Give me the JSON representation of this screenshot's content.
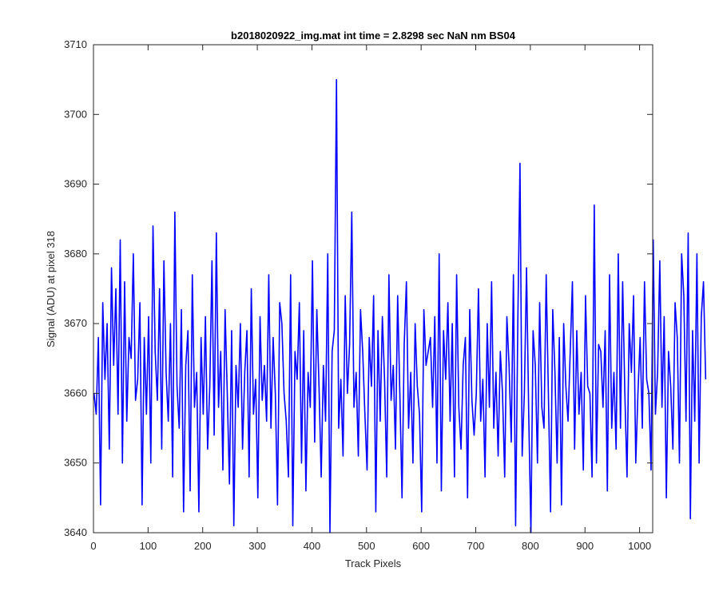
{
  "chart_data": {
    "type": "line",
    "title": "b2018020922_img.mat int time = 2.8298 sec  NaN nm BS04",
    "xlabel": "Track Pixels",
    "ylabel": "Signal (ADU) at pixel 318",
    "xlim": [
      0,
      1024
    ],
    "ylim": [
      3640,
      3710
    ],
    "xticks": [
      "0",
      "100",
      "200",
      "300",
      "400",
      "500",
      "600",
      "700",
      "800",
      "900",
      "1000"
    ],
    "yticks": [
      "3640",
      "3650",
      "3660",
      "3670",
      "3680",
      "3690",
      "3700",
      "3710"
    ],
    "grid": false,
    "line_color": "#0000ff",
    "series": [
      {
        "x_start": 1,
        "x_step": 4,
        "values": [
          3660,
          3657,
          3668,
          3644,
          3673,
          3662,
          3670,
          3652,
          3678,
          3664,
          3675,
          3657,
          3682,
          3650,
          3676,
          3656,
          3668,
          3665,
          3680,
          3659,
          3662,
          3673,
          3644,
          3668,
          3657,
          3671,
          3650,
          3684,
          3666,
          3659,
          3675,
          3652,
          3679,
          3663,
          3656,
          3670,
          3648,
          3686,
          3661,
          3655,
          3672,
          3643,
          3664,
          3669,
          3646,
          3677,
          3658,
          3663,
          3643,
          3668,
          3657,
          3671,
          3652,
          3661,
          3679,
          3654,
          3683,
          3658,
          3666,
          3649,
          3672,
          3660,
          3647,
          3669,
          3641,
          3664,
          3658,
          3670,
          3652,
          3663,
          3669,
          3648,
          3675,
          3657,
          3662,
          3645,
          3671,
          3659,
          3664,
          3656,
          3677,
          3655,
          3668,
          3660,
          3644,
          3673,
          3670,
          3660,
          3656,
          3648,
          3677,
          3641,
          3666,
          3662,
          3673,
          3650,
          3669,
          3646,
          3663,
          3658,
          3679,
          3653,
          3672,
          3661,
          3648,
          3664,
          3656,
          3680,
          3640,
          3666,
          3669,
          3705,
          3655,
          3662,
          3651,
          3674,
          3660,
          3667,
          3686,
          3658,
          3663,
          3651,
          3672,
          3666,
          3657,
          3649,
          3668,
          3661,
          3674,
          3643,
          3669,
          3656,
          3671,
          3662,
          3648,
          3677,
          3659,
          3664,
          3652,
          3674,
          3660,
          3645,
          3667,
          3676,
          3655,
          3663,
          3650,
          3670,
          3661,
          3657,
          3643,
          3672,
          3664,
          3666,
          3668,
          3658,
          3671,
          3650,
          3680,
          3646,
          3669,
          3662,
          3673,
          3656,
          3670,
          3648,
          3677,
          3658,
          3652,
          3664,
          3668,
          3645,
          3672,
          3659,
          3654,
          3660,
          3675,
          3656,
          3662,
          3648,
          3670,
          3658,
          3676,
          3655,
          3663,
          3651,
          3666,
          3660,
          3648,
          3671,
          3664,
          3653,
          3677,
          3641,
          3670,
          3693,
          3651,
          3660,
          3678,
          3657,
          3640,
          3669,
          3664,
          3650,
          3673,
          3658,
          3655,
          3677,
          3660,
          3643,
          3672,
          3663,
          3650,
          3668,
          3644,
          3670,
          3661,
          3656,
          3666,
          3676,
          3652,
          3669,
          3657,
          3663,
          3649,
          3674,
          3661,
          3660,
          3648,
          3687,
          3650,
          3667,
          3666,
          3658,
          3669,
          3646,
          3677,
          3655,
          3663,
          3652,
          3680,
          3655,
          3676,
          3660,
          3648,
          3670,
          3663,
          3674,
          3650,
          3660,
          3668,
          3655,
          3676,
          3662,
          3660,
          3649,
          3682,
          3657,
          3663,
          3679,
          3658,
          3671,
          3645,
          3666,
          3661,
          3652,
          3673,
          3668,
          3650,
          3680,
          3674,
          3656,
          3683,
          3642,
          3669,
          3656,
          3680,
          3650,
          3671,
          3676,
          3662
        ]
      }
    ]
  }
}
